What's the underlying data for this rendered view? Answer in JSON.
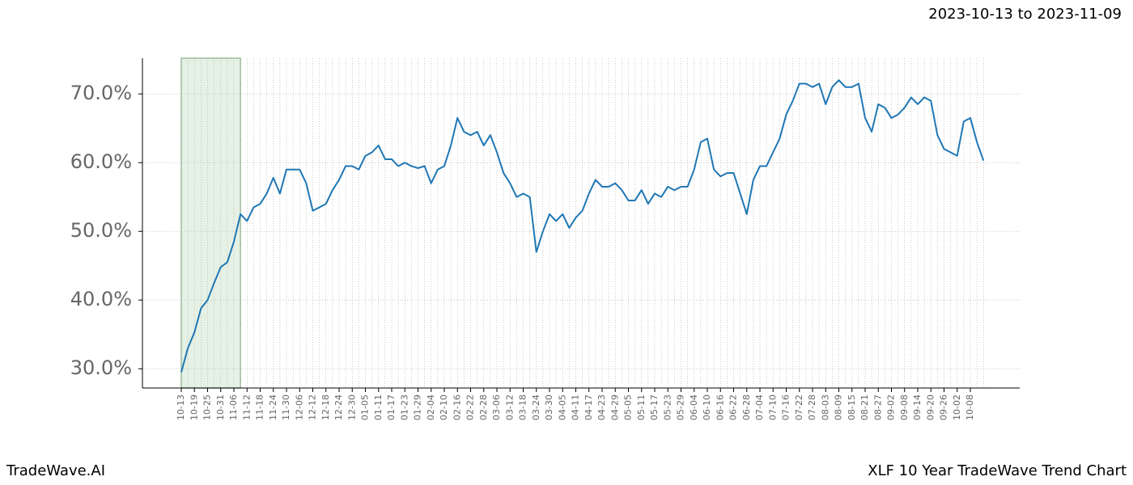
{
  "chart_data": {
    "type": "line",
    "subtitle": "2023-10-13 to 2023-11-09",
    "footer_left": "TradeWave.AI",
    "footer_right": "XLF 10 Year TradeWave Trend Chart",
    "categories": [
      "10-13",
      null,
      "10-19",
      null,
      "10-25",
      null,
      "10-31",
      null,
      "11-06",
      null,
      "11-12",
      null,
      "11-18",
      null,
      "11-24",
      null,
      "11-30",
      null,
      "12-06",
      null,
      "12-12",
      null,
      "12-18",
      null,
      "12-24",
      null,
      "12-30",
      null,
      "01-05",
      null,
      "01-11",
      null,
      "01-17",
      null,
      "01-23",
      null,
      "01-29",
      null,
      "02-04",
      null,
      "02-10",
      null,
      "02-16",
      null,
      "02-22",
      null,
      "02-28",
      null,
      "03-06",
      null,
      "03-12",
      null,
      "03-18",
      null,
      "03-24",
      null,
      "03-30",
      null,
      "04-05",
      null,
      "04-11",
      null,
      "04-17",
      null,
      "04-23",
      null,
      "04-29",
      null,
      "05-05",
      null,
      "05-11",
      null,
      "05-17",
      null,
      "05-23",
      null,
      "05-29",
      null,
      "06-04",
      null,
      "06-10",
      null,
      "06-16",
      null,
      "06-22",
      null,
      "06-28",
      null,
      "07-04",
      null,
      "07-10",
      null,
      "07-16",
      null,
      "07-22",
      null,
      "07-28",
      null,
      "08-03",
      null,
      "08-09",
      null,
      "08-15",
      null,
      "08-21",
      null,
      "08-27",
      null,
      "09-02",
      null,
      "09-08",
      null,
      "09-14",
      null,
      "09-20",
      null,
      "09-26",
      null,
      "10-02",
      null,
      "10-08",
      null,
      null
    ],
    "values": [
      29.5,
      33,
      35.3,
      38.8,
      40,
      42.5,
      44.8,
      45.5,
      48.5,
      52.5,
      51.5,
      53.5,
      54,
      55.5,
      57.8,
      55.5,
      59,
      59,
      59,
      57,
      53,
      53.5,
      54,
      56,
      57.5,
      59.5,
      59.5,
      59,
      61,
      61.5,
      62.5,
      60.5,
      60.5,
      59.5,
      60,
      59.5,
      59.2,
      59.5,
      57,
      59,
      59.5,
      62.5,
      66.5,
      64.5,
      64,
      64.5,
      62.5,
      64,
      61.5,
      58.5,
      57,
      55,
      55.5,
      55,
      47,
      50,
      52.5,
      51.5,
      52.5,
      50.5,
      52,
      53,
      55.5,
      57.5,
      56.5,
      56.5,
      57,
      56,
      54.5,
      54.5,
      56,
      54,
      55.5,
      55,
      56.5,
      56,
      56.5,
      56.5,
      59,
      63,
      63.5,
      59,
      58,
      58.5,
      58.5,
      55.5,
      52.5,
      57.5,
      59.5,
      59.5,
      61.5,
      63.5,
      67,
      69,
      71.5,
      71.5,
      71,
      71.5,
      68.5,
      71,
      72,
      71,
      71,
      71.5,
      66.5,
      64.5,
      68.5,
      68,
      66.5,
      67,
      68,
      69.5,
      68.5,
      69.5,
      69,
      64,
      62,
      61.5,
      61,
      66,
      66.5,
      63,
      60.3
    ],
    "color": "#1f77b4",
    "highlight": {
      "from": 0,
      "to": 9,
      "color": "#d5e8d4"
    },
    "ylim": [
      27.2,
      75.2
    ],
    "yticks": [
      {
        "value": 30,
        "label": "30.0%"
      },
      {
        "value": 40,
        "label": "40.0%"
      },
      {
        "value": 50,
        "label": "50.0%"
      },
      {
        "value": 60,
        "label": "60.0%"
      },
      {
        "value": 70,
        "label": "70.0%"
      }
    ],
    "grid": true
  }
}
